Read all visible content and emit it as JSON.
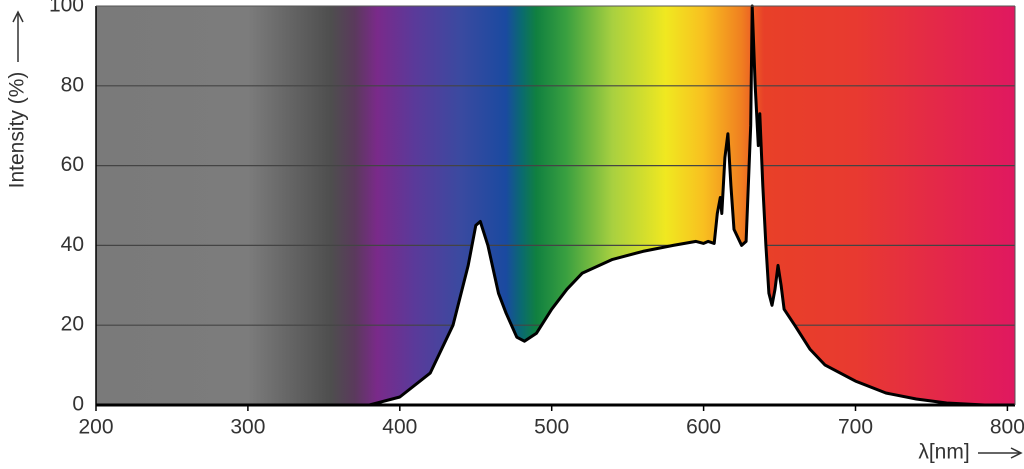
{
  "chart_data": {
    "type": "area",
    "x_label": "λ[nm]",
    "y_label": "Intensity (%)",
    "x": [
      380,
      400,
      420,
      435,
      445,
      450,
      453,
      458,
      465,
      470,
      477,
      482,
      490,
      500,
      510,
      520,
      540,
      560,
      580,
      595,
      600,
      603,
      607,
      609,
      611,
      612,
      614,
      616,
      618,
      620,
      625,
      628,
      631,
      632,
      634,
      636,
      637,
      639,
      641,
      643,
      645,
      647,
      649,
      651,
      653,
      660,
      670,
      680,
      700,
      720,
      740,
      760,
      785
    ],
    "values": [
      0,
      2,
      8,
      20,
      35,
      45,
      46,
      40,
      28,
      23,
      17,
      16,
      18,
      24,
      29,
      33,
      36.5,
      38.5,
      40,
      41,
      40.5,
      41,
      40.5,
      48,
      52,
      48,
      62,
      68,
      55,
      44,
      40,
      41,
      70,
      100,
      80,
      65,
      73,
      55,
      40,
      28,
      25,
      29,
      35,
      30,
      24,
      20,
      14,
      10,
      6,
      3,
      1.5,
      0.5,
      0
    ],
    "color": "#000000",
    "fill_color": "#ffffff",
    "xlim": [
      200,
      805
    ],
    "ylim": [
      0,
      100
    ],
    "xticks": [
      200,
      300,
      400,
      500,
      600,
      700,
      800
    ],
    "yticks": [
      0,
      20,
      40,
      60,
      80,
      100
    ],
    "grid": true
  }
}
